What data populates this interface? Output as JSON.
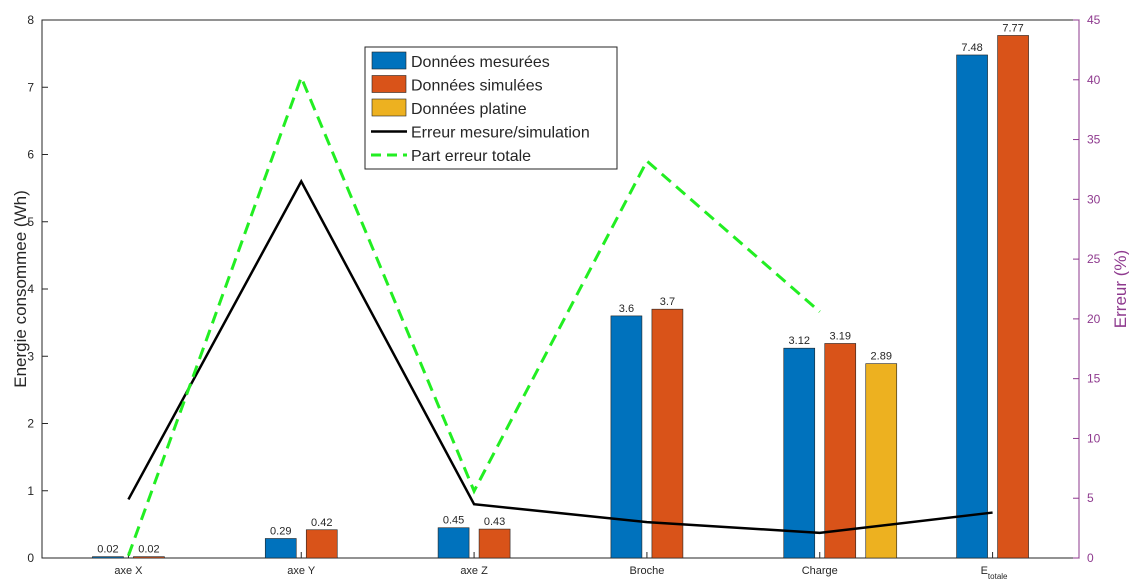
{
  "chart_data": {
    "type": "bar",
    "categories": [
      "axe X",
      "axe Y",
      "axe Z",
      "Broche",
      "Charge",
      "E"
    ],
    "last_category_subscript": "totale",
    "ylabel": "Energie consommee (Wh)",
    "y2label": "Erreur (%)",
    "ylim": [
      0,
      8
    ],
    "y2lim": [
      0,
      45
    ],
    "yticks": [
      0,
      1,
      2,
      3,
      4,
      5,
      6,
      7,
      8
    ],
    "y2ticks": [
      0,
      5,
      10,
      15,
      20,
      25,
      30,
      35,
      40,
      45
    ],
    "grid": false,
    "legend_position": "top-center",
    "bar_series": [
      {
        "name": "Données mesurées",
        "color": "#0072BD",
        "values": [
          0.02,
          0.29,
          0.45,
          3.6,
          3.12,
          7.48
        ],
        "labels": [
          "0.02",
          "0.29",
          "0.45",
          "3.6",
          "3.12",
          "7.48"
        ]
      },
      {
        "name": "Données simulées",
        "color": "#D95319",
        "values": [
          0.02,
          0.42,
          0.43,
          3.7,
          3.19,
          7.77
        ],
        "labels": [
          "0.02",
          "0.42",
          "0.43",
          "3.7",
          "3.19",
          "7.77"
        ]
      },
      {
        "name": "Données platine",
        "color": "#EDB120",
        "values": [
          null,
          null,
          null,
          null,
          2.89,
          null
        ],
        "labels": [
          null,
          null,
          null,
          null,
          "2.89",
          null
        ]
      }
    ],
    "line_series": [
      {
        "name": "Erreur mesure/simulation",
        "color": "#000000",
        "style": "solid",
        "axis": "right",
        "values": [
          4.9,
          31.5,
          4.5,
          3.0,
          2.1,
          3.8
        ]
      },
      {
        "name": "Part erreur totale",
        "color": "#22EE22",
        "style": "dashed",
        "axis": "right",
        "values": [
          0.2,
          40.2,
          5.6,
          33.2,
          20.6,
          null
        ]
      }
    ]
  }
}
